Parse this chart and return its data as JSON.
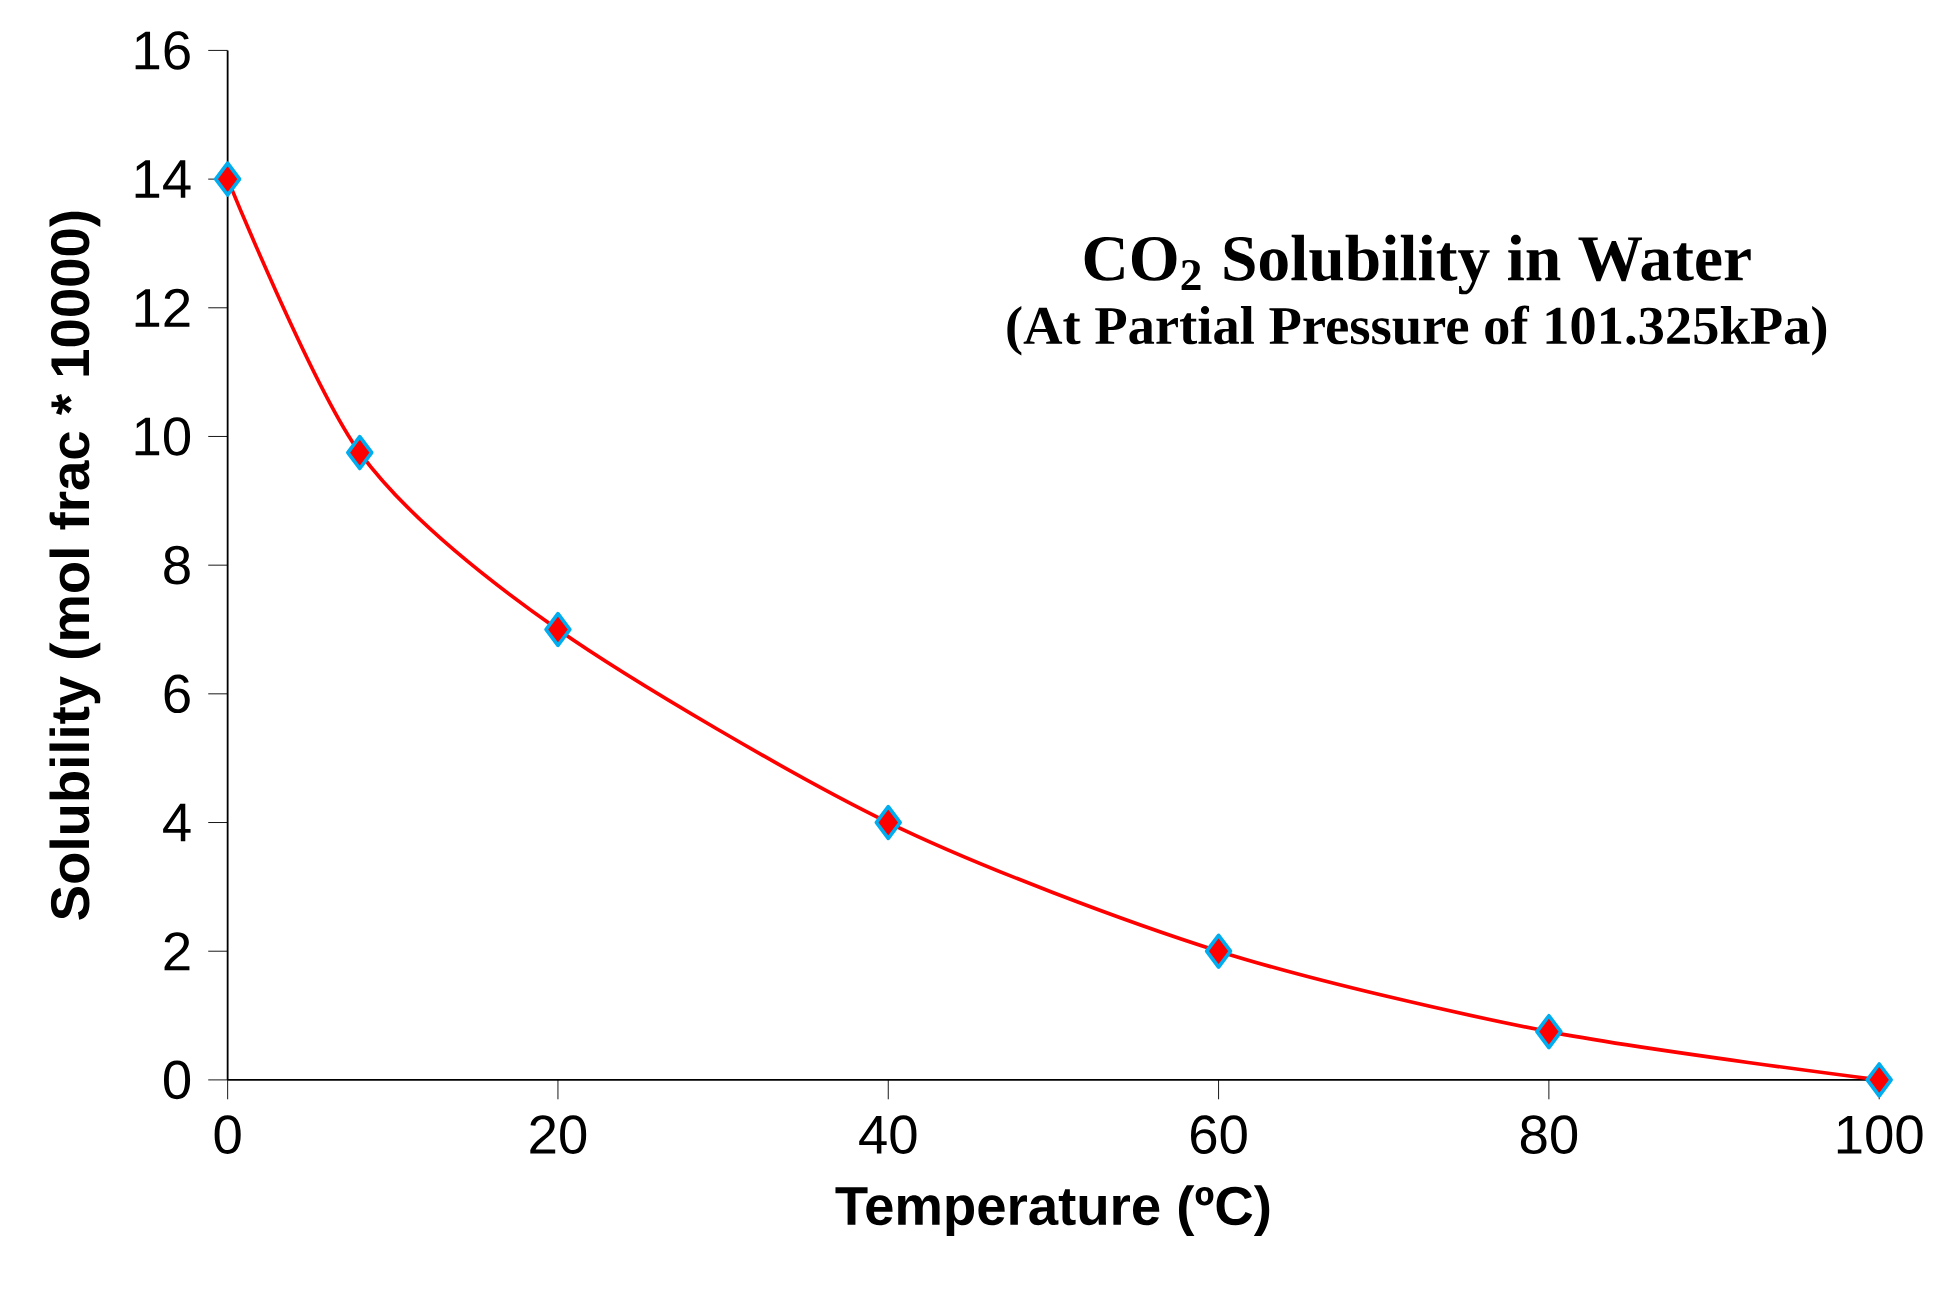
{
  "chart_data": {
    "type": "line",
    "title": "CO$_{2}$ Solubility in Water",
    "subtitle": "(At Partial Pressure of 101.325kPa)",
    "xlabel": "Temperature (ºC)",
    "ylabel": "Solubility (mol frac * 10000)",
    "x": [
      0,
      8,
      20,
      40,
      60,
      80,
      100
    ],
    "series": [
      {
        "color": "#ff0000",
        "values": [
          14,
          9.75,
          7,
          4,
          2,
          0.75,
          0
        ]
      }
    ],
    "xlim": [
      0,
      100
    ],
    "xticks": [
      0,
      20,
      40,
      60,
      80,
      100
    ],
    "ylim": [
      0,
      16
    ],
    "yticks": [
      0,
      2,
      4,
      6,
      8,
      10,
      12,
      14,
      16
    ],
    "marker": "diamond",
    "grid": false
  }
}
